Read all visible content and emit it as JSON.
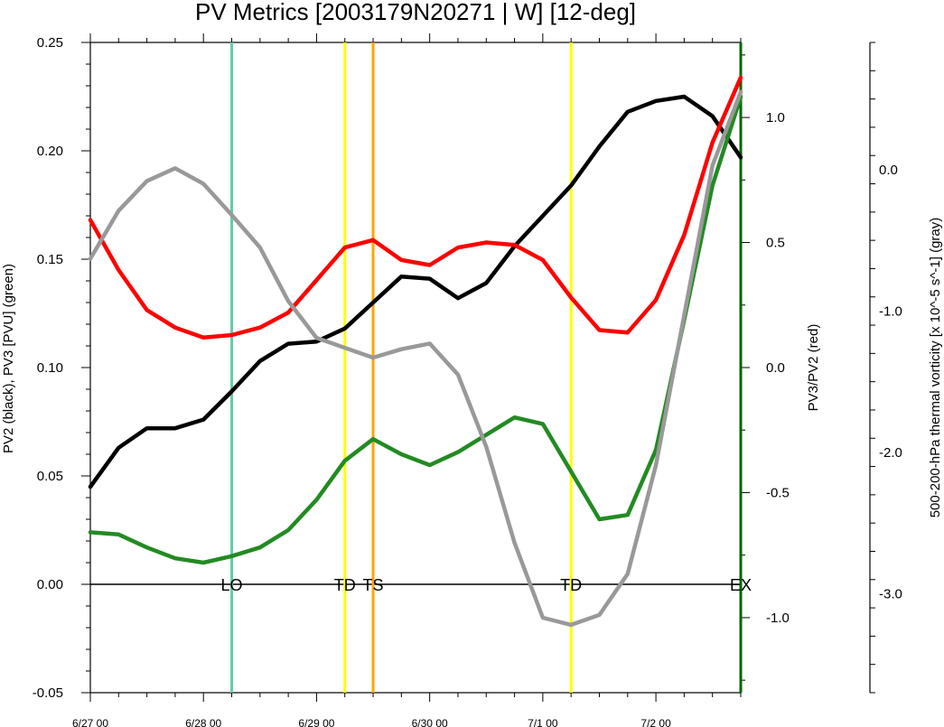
{
  "chart_data": {
    "type": "line",
    "title": "PV Metrics [2003179N20271 | W] [12-deg]",
    "x_tick_labels": [
      "6/27 00",
      "6/28 00",
      "6/29 00",
      "6/30 00",
      "7/1 00",
      "7/2 00"
    ],
    "x_tick_days": [
      0,
      1,
      2,
      3,
      4,
      5
    ],
    "x_step_days": 0.25,
    "xlim_days": [
      0,
      5.75
    ],
    "axes": {
      "left": {
        "label": "PV2 (black), PV3 [PVU] (green)",
        "range": [
          -0.05,
          0.25
        ],
        "ticks": [
          -0.05,
          0.0,
          0.05,
          0.1,
          0.15,
          0.2,
          0.25
        ],
        "tick_labels": [
          "-0.05",
          "0.00",
          "0.05",
          "0.10",
          "0.15",
          "0.20",
          "0.25"
        ]
      },
      "right1": {
        "label": "PV3/PV2 (red)",
        "range": [
          -1.3,
          1.3
        ],
        "ticks": [
          -1.0,
          -0.5,
          0.0,
          0.5,
          1.0
        ],
        "tick_labels": [
          "-1.0",
          "-0.5",
          "0.0",
          "0.5",
          "1.0"
        ]
      },
      "right2": {
        "label": "500-200-hPa thermal vorticity [x 10^-5 s^-1] (gray)",
        "range": [
          -3.7,
          0.9
        ],
        "ticks": [
          -3.0,
          -2.0,
          -1.0,
          0.0
        ],
        "tick_labels": [
          "-3.0",
          "-2.0",
          "-1.0",
          "0.0"
        ]
      }
    },
    "series": [
      {
        "axis": "left",
        "color": "#000000",
        "values": [
          0.045,
          0.063,
          0.072,
          0.072,
          0.076,
          0.089,
          0.103,
          0.111,
          0.112,
          0.118,
          0.13,
          0.142,
          0.141,
          0.132,
          0.139,
          0.156,
          0.17,
          0.184,
          0.202,
          0.218,
          0.223,
          0.225,
          0.216,
          0.197
        ]
      },
      {
        "axis": "left",
        "color": "#228B22",
        "values": [
          0.024,
          0.023,
          0.017,
          0.012,
          0.01,
          0.013,
          0.017,
          0.025,
          0.039,
          0.057,
          0.067,
          0.06,
          0.055,
          0.061,
          0.069,
          0.077,
          0.074,
          0.052,
          0.03,
          0.032,
          0.062,
          0.122,
          0.184,
          0.225
        ]
      },
      {
        "axis": "right1",
        "color": "#FF0000",
        "values": [
          0.59,
          0.39,
          0.23,
          0.16,
          0.12,
          0.13,
          0.16,
          0.22,
          0.35,
          0.48,
          0.51,
          0.43,
          0.41,
          0.48,
          0.5,
          0.49,
          0.43,
          0.28,
          0.15,
          0.14,
          0.27,
          0.53,
          0.9,
          1.16
        ]
      },
      {
        "axis": "right2",
        "color": "#999999",
        "values": [
          -0.63,
          -0.29,
          -0.08,
          0.01,
          -0.1,
          -0.32,
          -0.55,
          -0.93,
          -1.19,
          -1.26,
          -1.33,
          -1.27,
          -1.23,
          -1.45,
          -1.96,
          -2.64,
          -3.17,
          -3.22,
          -3.15,
          -2.86,
          -2.09,
          -1.03,
          0.03,
          0.55
        ]
      }
    ],
    "vertical_lines": [
      {
        "x_days": 1.25,
        "color": "#66CCAA",
        "label": "LO"
      },
      {
        "x_days": 2.25,
        "color": "#FFFF00",
        "label": "TD"
      },
      {
        "x_days": 2.5,
        "color": "#FFA500",
        "label": "TS"
      },
      {
        "x_days": 4.25,
        "color": "#FFFF00",
        "label": "TD"
      },
      {
        "x_days": 5.75,
        "color": "#006400",
        "label": "EX"
      }
    ],
    "zero_line": {
      "value": 0.0,
      "axis": "left"
    },
    "legend": "none",
    "grid": false
  }
}
